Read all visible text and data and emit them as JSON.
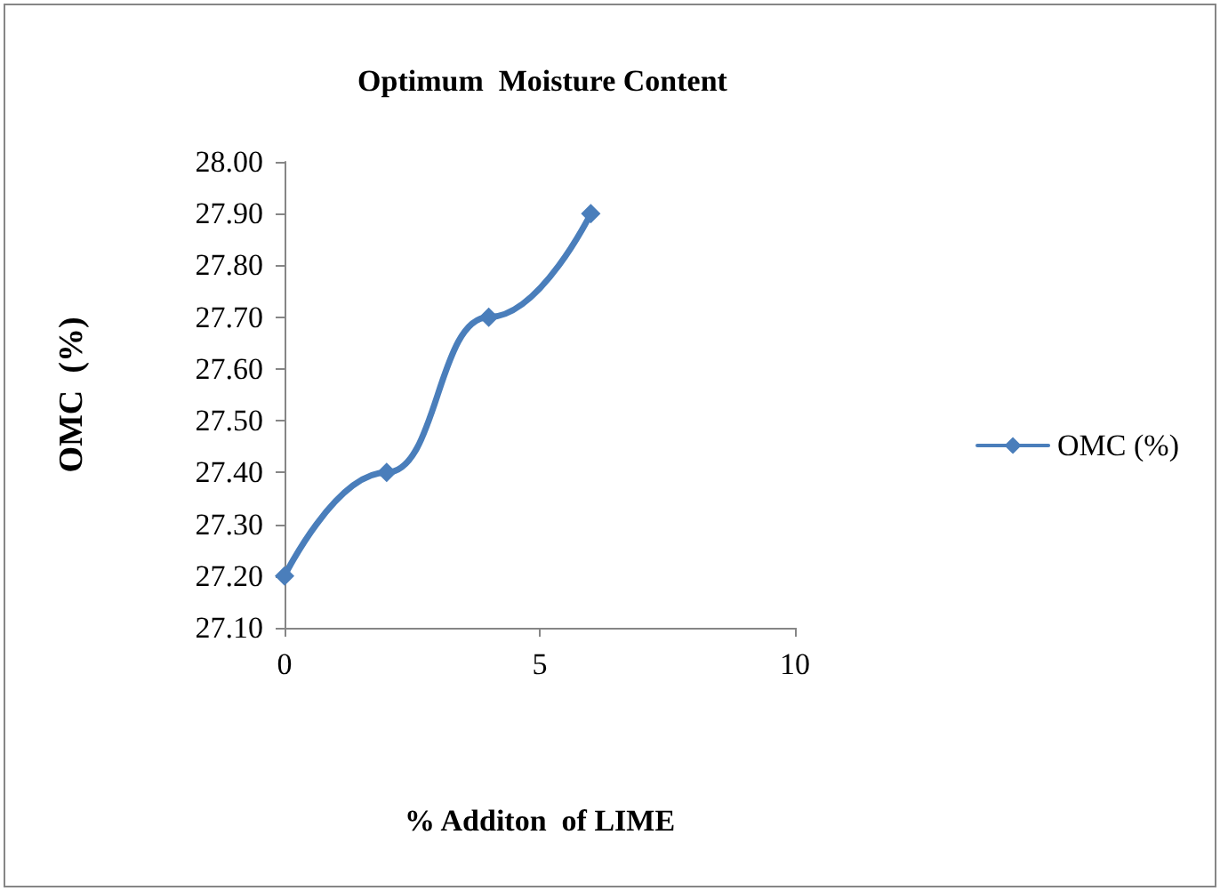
{
  "chart_data": {
    "type": "line",
    "title": "Optimum  Moisture Content",
    "xlabel": "% Additon  of LIME",
    "ylabel": "OMC  (%)",
    "x": [
      0,
      2,
      4,
      6
    ],
    "series": [
      {
        "name": "OMC (%)",
        "color": "#4a7ebb",
        "values": [
          27.2,
          27.4,
          27.7,
          27.9
        ]
      }
    ],
    "xlim": [
      0,
      10
    ],
    "xticks": [
      0,
      5,
      10
    ],
    "ylim": [
      27.1,
      28.0
    ],
    "yticks": [
      {
        "value": 27.1,
        "label": "27.10"
      },
      {
        "value": 27.2,
        "label": "27.20"
      },
      {
        "value": 27.3,
        "label": "27.30"
      },
      {
        "value": 27.4,
        "label": "27.40"
      },
      {
        "value": 27.5,
        "label": "27.50"
      },
      {
        "value": 27.6,
        "label": "27.60"
      },
      {
        "value": 27.7,
        "label": "27.70"
      },
      {
        "value": 27.8,
        "label": "27.80"
      },
      {
        "value": 27.9,
        "label": "27.90"
      },
      {
        "value": 28.0,
        "label": "28.00"
      }
    ],
    "grid": false,
    "legend": "right",
    "marker": "diamond",
    "line_style": "solid"
  }
}
